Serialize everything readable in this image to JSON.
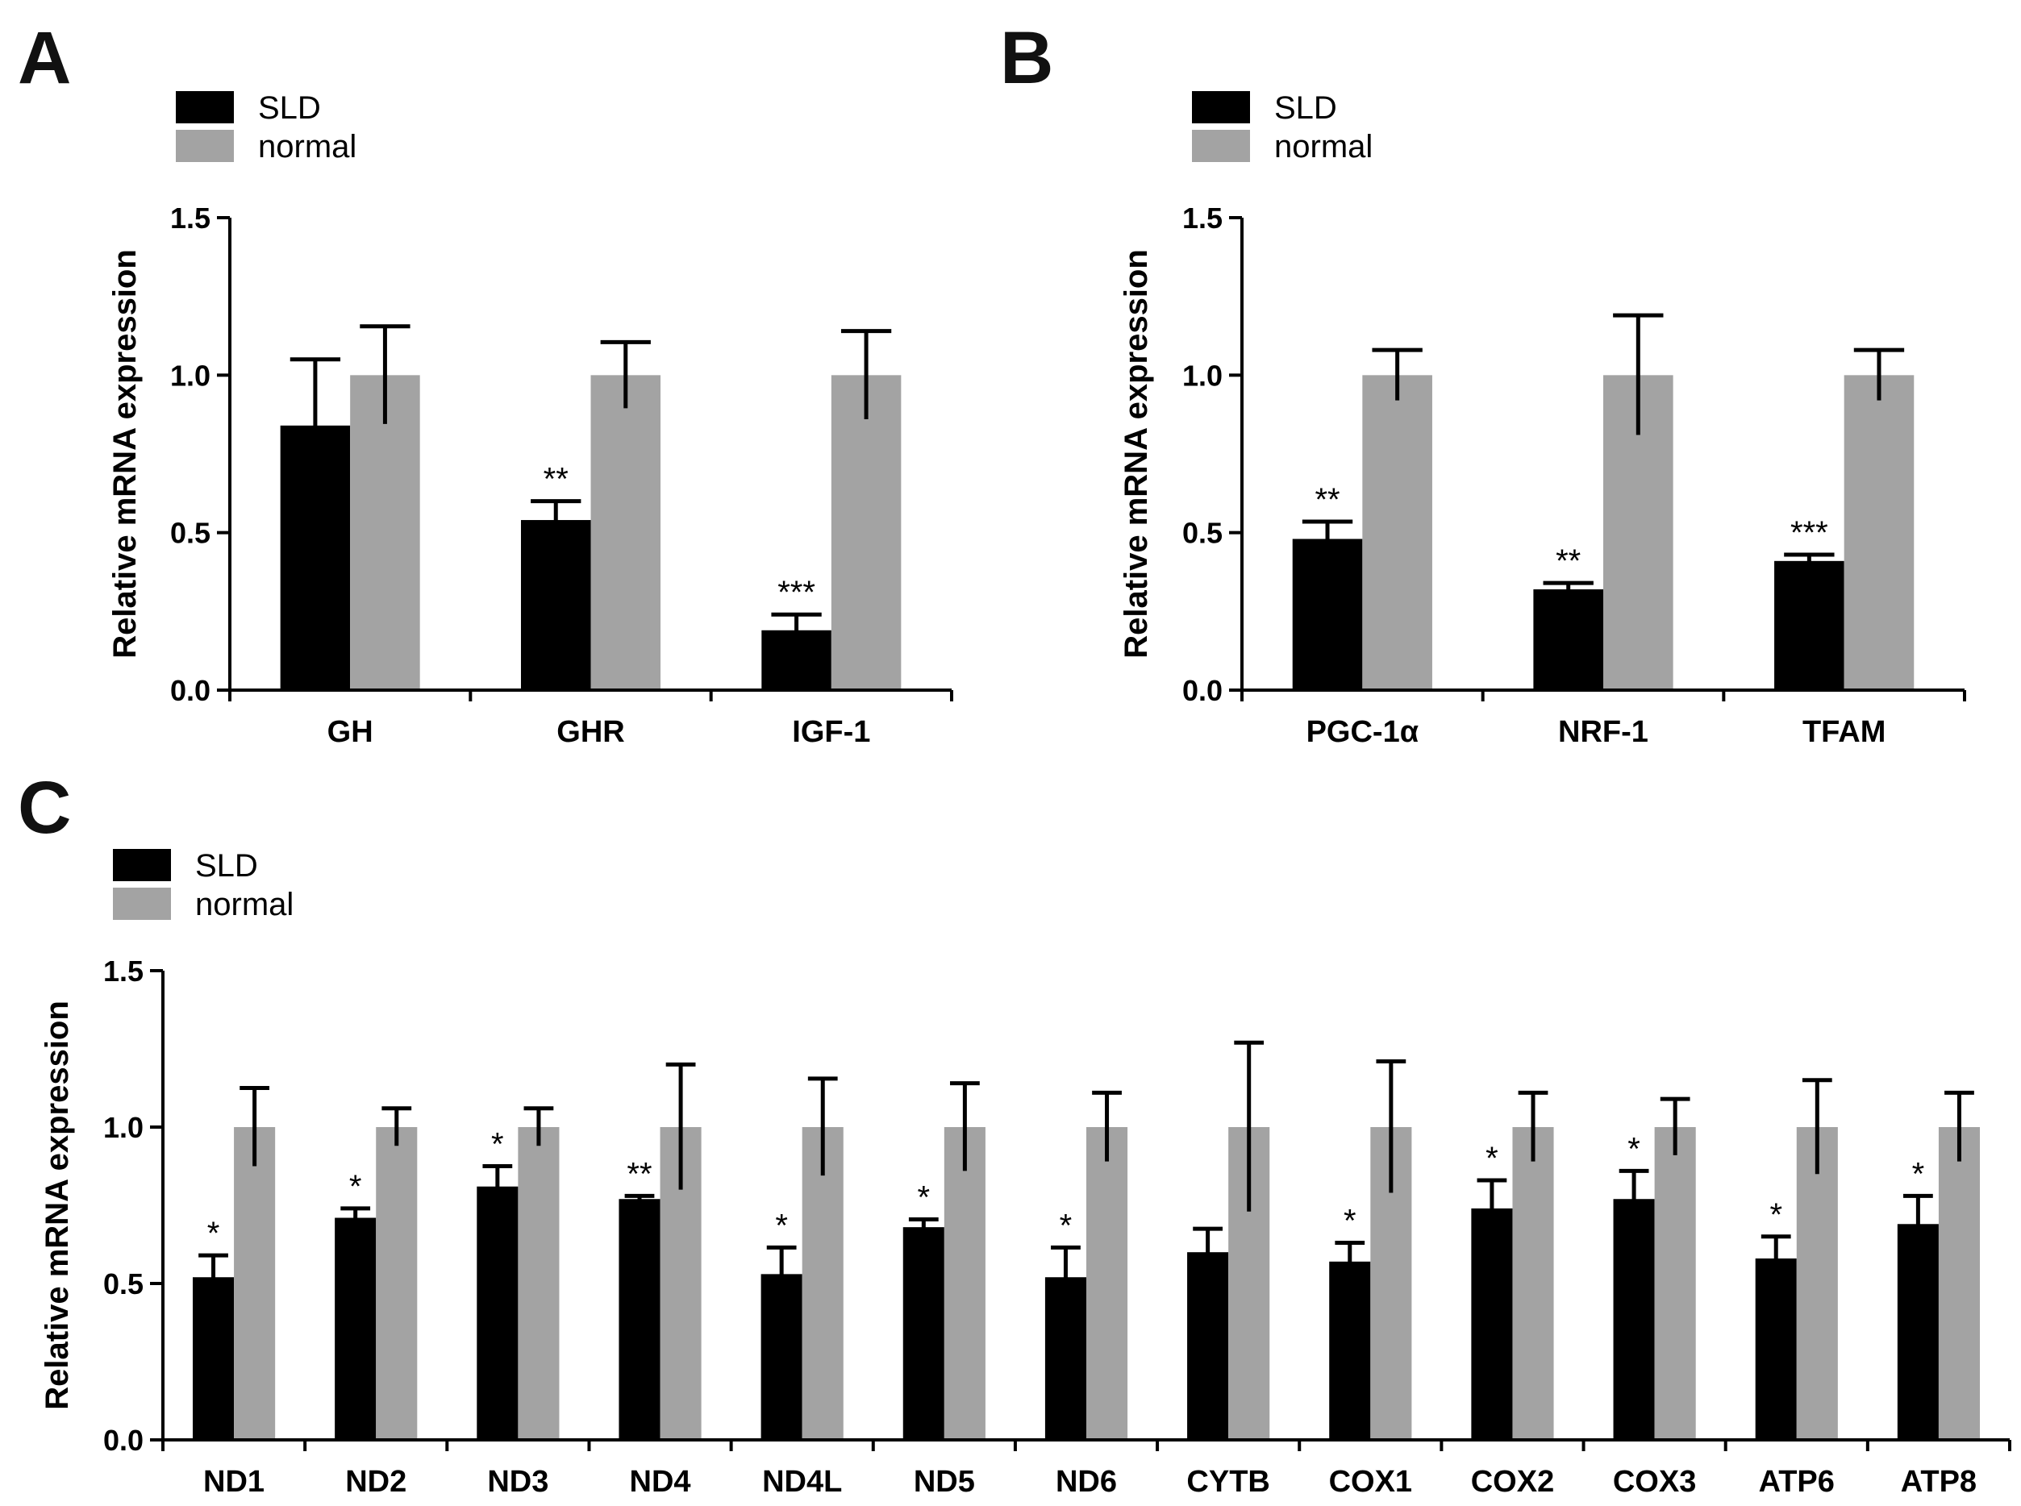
{
  "panels": {
    "A": {
      "label": "A"
    },
    "B": {
      "label": "B"
    },
    "C": {
      "label": "C"
    }
  },
  "colors": {
    "SLD": "#000000",
    "normal": "#a3a3a3",
    "axis": "#000000"
  },
  "chart_data": [
    {
      "id": "A",
      "type": "bar",
      "categories": [
        "GH",
        "GHR",
        "IGF-1"
      ],
      "series": [
        {
          "name": "SLD",
          "values": [
            0.84,
            0.54,
            0.19
          ],
          "error": [
            0.21,
            0.06,
            0.05
          ],
          "sig": [
            "",
            "**",
            "***"
          ]
        },
        {
          "name": "normal",
          "values": [
            1.0,
            1.0,
            1.0
          ],
          "error": [
            0.155,
            0.105,
            0.14
          ],
          "sig": [
            "",
            "",
            ""
          ]
        }
      ],
      "ylabel": "Relative mRNA expression",
      "ylim": [
        0,
        1.5
      ],
      "yticks": [
        "0.0",
        "0.5",
        "1.0",
        "1.5"
      ],
      "grid": false,
      "legend": "top-left"
    },
    {
      "id": "B",
      "type": "bar",
      "categories": [
        "PGC-1α",
        "NRF-1",
        "TFAM"
      ],
      "series": [
        {
          "name": "SLD",
          "values": [
            0.48,
            0.32,
            0.41
          ],
          "error": [
            0.055,
            0.02,
            0.02
          ],
          "sig": [
            "**",
            "**",
            "***"
          ]
        },
        {
          "name": "normal",
          "values": [
            1.0,
            1.0,
            1.0
          ],
          "error": [
            0.08,
            0.19,
            0.08
          ],
          "sig": [
            "",
            "",
            ""
          ]
        }
      ],
      "ylabel": "Relative mRNA expression",
      "ylim": [
        0,
        1.5
      ],
      "yticks": [
        "0.0",
        "0.5",
        "1.0",
        "1.5"
      ],
      "grid": false,
      "legend": "top-left"
    },
    {
      "id": "C",
      "type": "bar",
      "categories": [
        "ND1",
        "ND2",
        "ND3",
        "ND4",
        "ND4L",
        "ND5",
        "ND6",
        "CYTB",
        "COX1",
        "COX2",
        "COX3",
        "ATP6",
        "ATP8"
      ],
      "series": [
        {
          "name": "SLD",
          "values": [
            0.52,
            0.71,
            0.81,
            0.77,
            0.53,
            0.68,
            0.52,
            0.6,
            0.57,
            0.74,
            0.77,
            0.58,
            0.69
          ],
          "error": [
            0.07,
            0.03,
            0.065,
            0.01,
            0.085,
            0.025,
            0.095,
            0.075,
            0.06,
            0.09,
            0.09,
            0.07,
            0.09
          ],
          "sig": [
            "*",
            "*",
            "*",
            "**",
            "*",
            "*",
            "*",
            "",
            "*",
            "*",
            "*",
            "*",
            "*"
          ]
        },
        {
          "name": "normal",
          "values": [
            1.0,
            1.0,
            1.0,
            1.0,
            1.0,
            1.0,
            1.0,
            1.0,
            1.0,
            1.0,
            1.0,
            1.0,
            1.0
          ],
          "error": [
            0.125,
            0.06,
            0.06,
            0.2,
            0.155,
            0.14,
            0.11,
            0.27,
            0.21,
            0.11,
            0.09,
            0.15,
            0.11
          ],
          "sig": [
            "",
            "",
            "",
            "",
            "",
            "",
            "",
            "",
            "",
            "",
            "",
            "",
            ""
          ]
        }
      ],
      "ylabel": "Relative mRNA expression",
      "ylim": [
        0,
        1.5
      ],
      "yticks": [
        "0.0",
        "0.5",
        "1.0",
        "1.5"
      ],
      "grid": false,
      "legend": "top-left"
    }
  ]
}
